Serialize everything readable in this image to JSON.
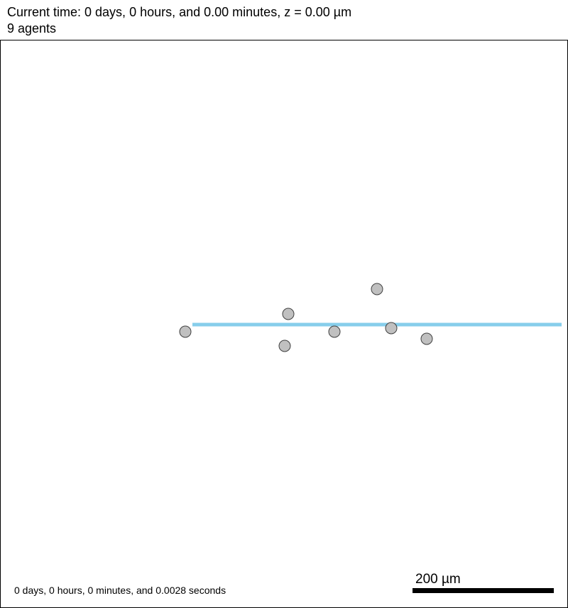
{
  "header": {
    "time_text": "Current time: 0 days, 0 hours, and 0.00 minutes, z = 0.00 µm",
    "agent_count_text": "9 agents"
  },
  "footer": {
    "elapsed_text": "0 days, 0 hours, 0 minutes, and 0.0028 seconds"
  },
  "scale_bar": {
    "label": "200 µm"
  },
  "colors": {
    "agent_fill": "#c0c0c0",
    "agent_stroke": "#404040",
    "line_color": "#87ceeb",
    "border": "#000000",
    "background": "#ffffff"
  }
}
